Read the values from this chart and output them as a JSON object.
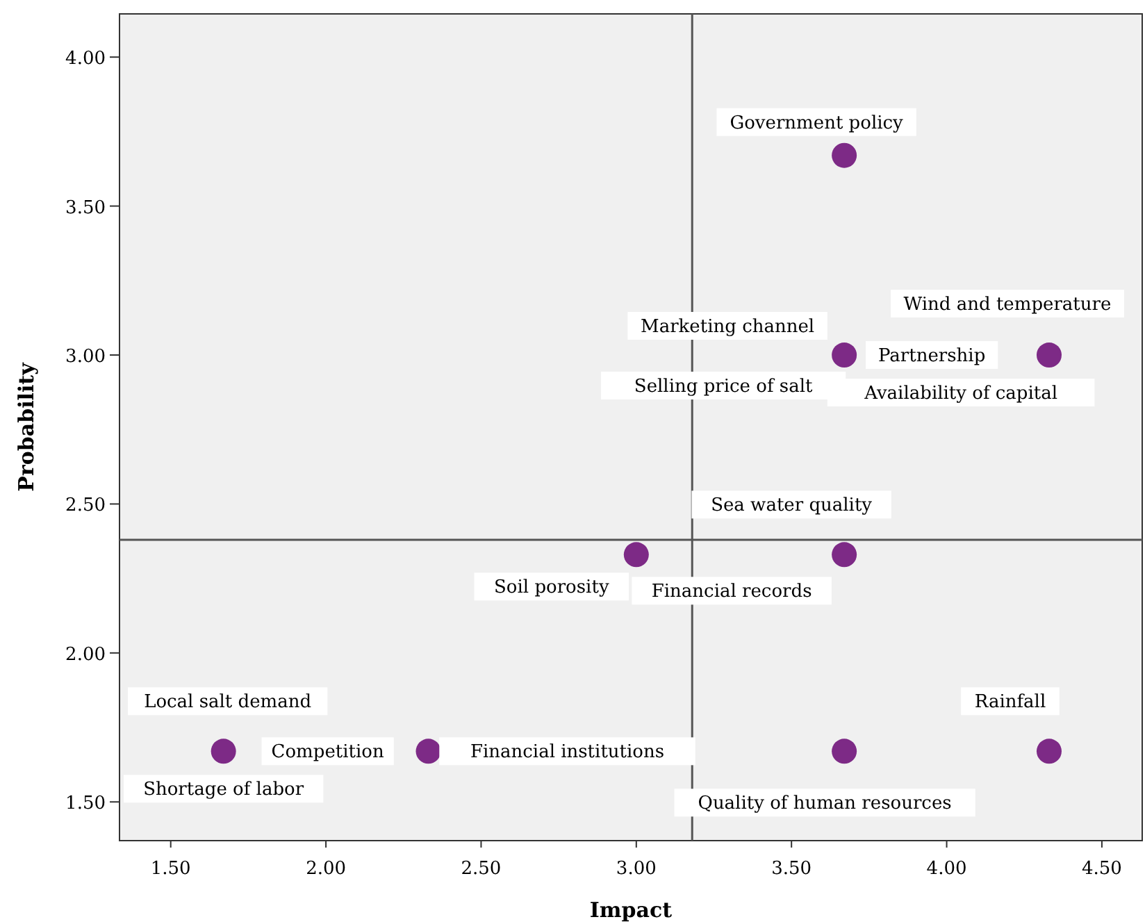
{
  "chart_data": {
    "type": "scatter",
    "xlabel": "Impact",
    "ylabel": "Probability",
    "xlim": [
      1.335,
      4.63
    ],
    "ylim": [
      1.37,
      4.145
    ],
    "xticks": [
      {
        "value": 1.5,
        "label": "1.50"
      },
      {
        "value": 2,
        "label": "2.00"
      },
      {
        "value": 2.5,
        "label": "2.50"
      },
      {
        "value": 3,
        "label": "3.00"
      },
      {
        "value": 3.5,
        "label": "3.50"
      },
      {
        "value": 4,
        "label": "4.00"
      },
      {
        "value": 4.5,
        "label": "4.50"
      }
    ],
    "yticks": [
      {
        "value": 1.5,
        "label": "1.50"
      },
      {
        "value": 2,
        "label": "2.00"
      },
      {
        "value": 2.5,
        "label": "2.50"
      },
      {
        "value": 3,
        "label": "3.00"
      },
      {
        "value": 3.5,
        "label": "3.50"
      },
      {
        "value": 4,
        "label": "4.00"
      }
    ],
    "series": [
      {
        "color": "#7d2a86",
        "x": [
          3.67,
          4.33,
          3.67,
          3.67,
          3.0,
          1.67,
          2.33,
          4.33,
          3.67
        ],
        "values": [
          3.67,
          3.0,
          3.0,
          2.33,
          2.33,
          1.67,
          1.67,
          1.67,
          1.67
        ]
      }
    ],
    "ref_lines": [
      {
        "axis": "x",
        "value": 3.18,
        "color": "#555555"
      },
      {
        "axis": "y",
        "value": 2.38,
        "color": "#555555"
      }
    ],
    "marker": "circle",
    "grid": false,
    "annotations": [
      {
        "text": "Government policy",
        "x": 3.67,
        "y": 3.67
      },
      {
        "text": "Wind and temperature",
        "x": 4.33,
        "y": 3.0
      },
      {
        "text": "Marketing channel",
        "x": 3.67,
        "y": 3.0
      },
      {
        "text": "Partnership",
        "x": 3.67,
        "y": 3.0
      },
      {
        "text": "Selling price of salt",
        "x": 3.67,
        "y": 3.0
      },
      {
        "text": "Availability of capital",
        "x": 3.67,
        "y": 3.0
      },
      {
        "text": "Sea water quality",
        "x": 3.67,
        "y": 2.33
      },
      {
        "text": "Soil porosity",
        "x": 3.0,
        "y": 2.33
      },
      {
        "text": "Financial records",
        "x": 3.67,
        "y": 2.33
      },
      {
        "text": "Local salt demand",
        "x": 1.67,
        "y": 1.67
      },
      {
        "text": "Competition",
        "x": 1.67,
        "y": 1.67
      },
      {
        "text": "Financial institutions",
        "x": 2.33,
        "y": 1.67
      },
      {
        "text": "Shortage of labor",
        "x": 1.67,
        "y": 1.67
      },
      {
        "text": "Rainfall",
        "x": 4.33,
        "y": 1.67
      },
      {
        "text": "Quality of human resources",
        "x": 3.67,
        "y": 1.67
      }
    ]
  }
}
